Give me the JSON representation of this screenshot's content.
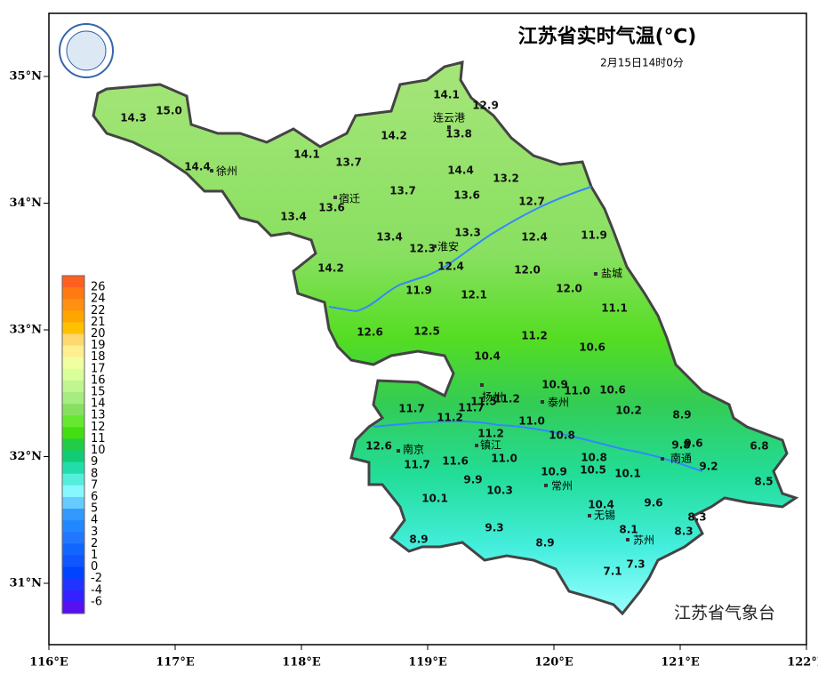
{
  "title": "江苏省实时气温(℃)",
  "subtitle": "2月15日14时0分",
  "footer": "江苏省气象台",
  "lon_labels": [
    "116°E",
    "117°E",
    "118°E",
    "119°E",
    "120°E",
    "121°E",
    "122°E"
  ],
  "lat_labels": [
    "35°N",
    "34°N",
    "33°N",
    "32°N",
    "31°N"
  ],
  "legend": {
    "labels": [
      26,
      24,
      22,
      21,
      20,
      19,
      18,
      17,
      16,
      15,
      14,
      13,
      12,
      11,
      10,
      9,
      8,
      7,
      6,
      5,
      4,
      3,
      2,
      1,
      0,
      -2,
      -4,
      -6
    ],
    "colors": [
      "#ff6020",
      "#ff7a10",
      "#ff9010",
      "#ffa500",
      "#ffc000",
      "#ffd870",
      "#ffef90",
      "#f0ffa0",
      "#d8ff9a",
      "#c0f590",
      "#a8ec80",
      "#88e060",
      "#66e830",
      "#44dd11",
      "#22cc44",
      "#11cc77",
      "#22ddaa",
      "#55eedd",
      "#88f8ff",
      "#66ccff",
      "#3399ff",
      "#2288ff",
      "#2277ff",
      "#1166ff",
      "#1155ff",
      "#0044ff",
      "#2233ff",
      "#3322ff",
      "#5511ee"
    ]
  },
  "station_values": [
    "14.1",
    "12.9",
    "14.3",
    "15.0",
    "14.2",
    "13.8",
    "14.1",
    "13.7",
    "14.4",
    "14.4",
    "13.2",
    "13.7",
    "13.6",
    "13.6",
    "12.7",
    "13.4",
    "13.3",
    "13.4",
    "12.4",
    "11.9",
    "12.3",
    "12.4",
    "14.2",
    "12.0",
    "11.9",
    "12.1",
    "12.0",
    "11.1",
    "12.6",
    "12.5",
    "11.2",
    "10.6",
    "10.4",
    "10.9",
    "11.0",
    "10.6",
    "11.2",
    "11.7",
    "11.7",
    "11.5",
    "10.2",
    "8.9",
    "11.2",
    "11.0",
    "11.2",
    "10.8",
    "12.6",
    "9.8",
    "9.6",
    "6.8",
    "11.7",
    "11.6",
    "11.0",
    "10.8",
    "10.5",
    "10.9",
    "10.1",
    "9.2",
    "9.9",
    "10.3",
    "8.5",
    "10.1",
    "9.6",
    "10.4",
    "8.3",
    "9.3",
    "8.1",
    "8.3",
    "8.9",
    "8.9",
    "7.3",
    "7.1"
  ],
  "cities": [
    "连云港",
    "徐州",
    "宿迁",
    "淮安",
    "盐城",
    "扬州",
    "泰州",
    "南京",
    "镇江",
    "南通",
    "常州",
    "无锡",
    "苏州"
  ]
}
